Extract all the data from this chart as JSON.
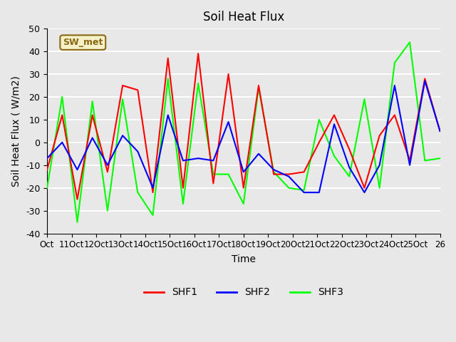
{
  "title": "Soil Heat Flux",
  "xlabel": "Time",
  "ylabel": "Soil Heat Flux ( W/m2)",
  "ylim": [
    -40,
    50
  ],
  "xlim": [
    0,
    25
  ],
  "background_color": "#e8e8e8",
  "plot_bg_color": "#e8e8e8",
  "grid_color": "white",
  "annotation_text": "SW_met",
  "annotation_bg": "#f5f0c8",
  "annotation_border": "#8B6914",
  "series_colors": {
    "SHF1": "red",
    "SHF2": "blue",
    "SHF3": "lime"
  },
  "xtick_labels": [
    "Oct",
    "11Oct",
    "12Oct",
    "13Oct",
    "14Oct",
    "15Oct",
    "16Oct",
    "17Oct",
    "18Oct",
    "19Oct",
    "20Oct",
    "21Oct",
    "22Oct",
    "23Oct",
    "24Oct",
    "25Oct",
    "26"
  ],
  "ytick_values": [
    -40,
    -30,
    -20,
    -10,
    0,
    10,
    20,
    30,
    40,
    50
  ],
  "shf1": [
    -12,
    12,
    -25,
    12,
    -13,
    25,
    23,
    -22,
    37,
    -20,
    39,
    -18,
    30,
    -20,
    25,
    -14,
    -14,
    -13,
    0,
    12,
    -3,
    -20,
    3,
    12,
    -8,
    28,
    5
  ],
  "shf2": [
    -7,
    0,
    -12,
    2,
    -10,
    3,
    -4,
    -20,
    12,
    -8,
    -7,
    -8,
    9,
    -13,
    -5,
    -12,
    -15,
    -22,
    -22,
    8,
    -11,
    -22,
    -10,
    25,
    -10,
    27,
    5
  ],
  "shf3": [
    -20,
    20,
    -35,
    18,
    -30,
    19,
    -22,
    -32,
    28,
    -27,
    26,
    -14,
    -14,
    -27,
    24,
    -13,
    -20,
    -21,
    10,
    -6,
    -15,
    19,
    -20,
    35,
    44,
    -8,
    -7
  ],
  "num_points": 27
}
